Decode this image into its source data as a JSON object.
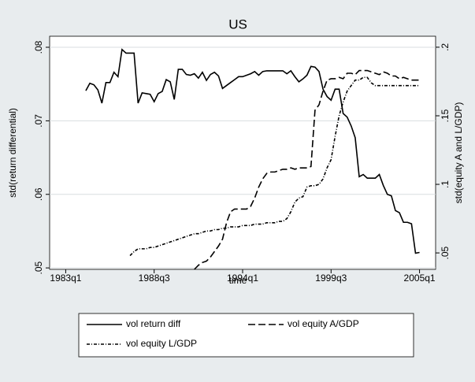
{
  "chart_data": {
    "type": "line",
    "title": "US",
    "x_label": "time",
    "y_label": "std(return differential)",
    "y2_label": "std(equity A and L/GDP)",
    "x": [
      "1984q2",
      "1984q3",
      "1984q4",
      "1985q1",
      "1985q2",
      "1985q3",
      "1985q4",
      "1986q1",
      "1986q2",
      "1986q3",
      "1986q4",
      "1987q1",
      "1987q2",
      "1987q3",
      "1987q4",
      "1988q1",
      "1988q2",
      "1988q3",
      "1988q4",
      "1989q1",
      "1989q2",
      "1989q3",
      "1989q4",
      "1990q1",
      "1990q2",
      "1990q3",
      "1990q4",
      "1991q1",
      "1991q2",
      "1991q3",
      "1991q4",
      "1992q1",
      "1992q2",
      "1992q3",
      "1992q4",
      "1993q1",
      "1993q2",
      "1993q3",
      "1993q4",
      "1994q1",
      "1994q2",
      "1994q3",
      "1994q4",
      "1995q1",
      "1995q2",
      "1995q3",
      "1995q4",
      "1996q1",
      "1996q2",
      "1996q3",
      "1996q4",
      "1997q1",
      "1997q2",
      "1997q3",
      "1997q4",
      "1998q1",
      "1998q2",
      "1998q3",
      "1998q4",
      "1999q1",
      "1999q2",
      "1999q3",
      "1999q4",
      "2000q1",
      "2000q2",
      "2000q3",
      "2000q4",
      "2001q1",
      "2001q2",
      "2001q3",
      "2001q4",
      "2002q1",
      "2002q2",
      "2002q3",
      "2002q4",
      "2003q1",
      "2003q2",
      "2003q3",
      "2003q4",
      "2004q1",
      "2004q2",
      "2004q3",
      "2004q4",
      "2005q1"
    ],
    "series": [
      {
        "name": "vol return diff",
        "color": "#000000",
        "dash": "none",
        "axis": "y",
        "values": [
          0.0741,
          0.0751,
          0.0749,
          0.0742,
          0.0724,
          0.0752,
          0.0752,
          0.0766,
          0.076,
          0.0797,
          0.0792,
          0.0792,
          0.0792,
          0.0724,
          0.0738,
          0.0737,
          0.0736,
          0.0726,
          0.0737,
          0.074,
          0.0756,
          0.0753,
          0.0729,
          0.077,
          0.077,
          0.0763,
          0.0762,
          0.0764,
          0.0758,
          0.0766,
          0.0755,
          0.0763,
          0.0766,
          0.0761,
          0.0744,
          0.0748,
          0.0752,
          0.0756,
          0.076,
          0.076,
          0.0762,
          0.0764,
          0.0767,
          0.0762,
          0.0767,
          0.0768,
          0.0768,
          0.0768,
          0.0768,
          0.0768,
          0.0764,
          0.0768,
          0.076,
          0.0753,
          0.0757,
          0.0762,
          0.0774,
          0.0773,
          0.0767,
          0.0743,
          0.0733,
          0.0728,
          0.0743,
          0.0743,
          0.071,
          0.0705,
          0.0693,
          0.0677,
          0.0624,
          0.0627,
          0.0622,
          0.0622,
          0.0622,
          0.0627,
          0.0612,
          0.06,
          0.0598,
          0.0578,
          0.0575,
          0.0562,
          0.0562,
          0.056,
          0.052,
          0.0521
        ]
      },
      {
        "name": "vol equity A/GDP",
        "color": "#000000",
        "dash": "9 4",
        "axis": "y2",
        "values": [
          null,
          null,
          null,
          null,
          null,
          null,
          null,
          null,
          null,
          null,
          null,
          null,
          null,
          null,
          null,
          null,
          null,
          null,
          null,
          null,
          null,
          null,
          null,
          null,
          null,
          null,
          null,
          0.038,
          0.041,
          0.043,
          0.044,
          0.047,
          0.051,
          0.055,
          0.06,
          0.072,
          0.08,
          0.082,
          0.082,
          0.082,
          0.082,
          0.084,
          0.09,
          0.098,
          0.104,
          0.108,
          0.109,
          0.109,
          0.11,
          0.111,
          0.111,
          0.112,
          0.111,
          0.112,
          0.112,
          0.112,
          0.113,
          0.154,
          0.158,
          0.168,
          0.176,
          0.177,
          0.177,
          0.178,
          0.177,
          0.181,
          0.181,
          0.18,
          0.183,
          0.183,
          0.183,
          0.182,
          0.181,
          0.18,
          0.182,
          0.181,
          0.179,
          0.179,
          0.177,
          0.178,
          0.177,
          0.176,
          0.176,
          0.176
        ]
      },
      {
        "name": "vol equity L/GDP",
        "color": "#000000",
        "dash": "4 2 1 2",
        "axis": "y2",
        "values": [
          null,
          null,
          null,
          null,
          null,
          null,
          null,
          null,
          null,
          null,
          null,
          0.048,
          0.051,
          0.053,
          0.053,
          0.053,
          0.054,
          0.054,
          0.055,
          0.056,
          0.057,
          0.058,
          0.059,
          0.06,
          0.061,
          0.062,
          0.063,
          0.064,
          0.064,
          0.065,
          0.066,
          0.066,
          0.067,
          0.067,
          0.068,
          0.068,
          0.069,
          0.069,
          0.069,
          0.07,
          0.07,
          0.07,
          0.071,
          0.071,
          0.071,
          0.072,
          0.072,
          0.072,
          0.073,
          0.073,
          0.075,
          0.08,
          0.087,
          0.09,
          0.091,
          0.098,
          0.099,
          0.099,
          0.1,
          0.104,
          0.112,
          0.118,
          0.135,
          0.15,
          0.16,
          0.168,
          0.172,
          0.176,
          0.176,
          0.178,
          0.178,
          0.174,
          0.172,
          0.172,
          0.172,
          0.172,
          0.172,
          0.172,
          0.172,
          0.172,
          0.172,
          0.172,
          0.172,
          0.172
        ]
      }
    ],
    "xlim": [
      "1982q1",
      "2006q1"
    ],
    "xticks": [
      "1983q1",
      "1988q3",
      "1994q1",
      "1999q3",
      "2005q1"
    ],
    "ylim": [
      0.0498,
      0.0815
    ],
    "yticks": [
      {
        "value": 0.05,
        "label": ".05"
      },
      {
        "value": 0.06,
        "label": ".06"
      },
      {
        "value": 0.07,
        "label": ".07"
      },
      {
        "value": 0.08,
        "label": ".08"
      }
    ],
    "y2lim": [
      0.038,
      0.208
    ],
    "y2ticks": [
      {
        "value": 0.05,
        "label": ".05"
      },
      {
        "value": 0.1,
        "label": ".1"
      },
      {
        "value": 0.15,
        "label": ".15"
      },
      {
        "value": 0.2,
        "label": ".2"
      }
    ],
    "grid": true,
    "legend": "bottom"
  }
}
